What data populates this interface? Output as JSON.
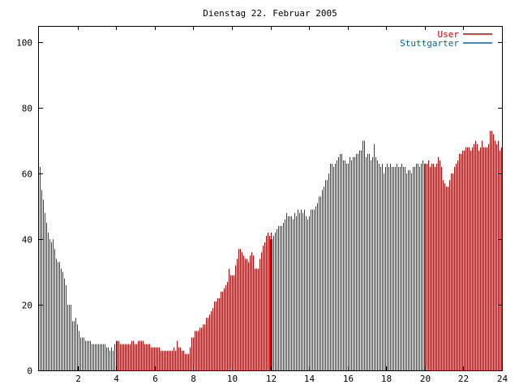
{
  "chart_data": {
    "type": "bar",
    "title": "Dienstag 22. Februar 2005",
    "xlabel": "",
    "ylabel": "",
    "xlim": [
      0,
      24
    ],
    "ylim": [
      0,
      105
    ],
    "xticks": [
      2,
      4,
      6,
      8,
      10,
      12,
      14,
      16,
      18,
      20,
      22,
      24
    ],
    "yticks": [
      0,
      20,
      40,
      60,
      80,
      100
    ],
    "legend_position": "top-right",
    "grid": false,
    "series": [
      {
        "name": "User",
        "color": "#cc0000",
        "y": [
          62,
          55,
          52,
          48,
          45,
          42,
          40,
          39,
          40,
          37,
          34,
          33,
          33,
          31,
          30,
          28,
          26,
          20,
          20,
          20,
          15,
          15,
          16,
          14,
          12,
          10,
          10,
          10,
          9,
          9,
          9,
          9,
          8,
          8,
          8,
          8,
          8,
          8,
          8,
          8,
          8,
          7,
          7,
          6,
          7,
          6,
          8,
          9,
          9,
          9,
          8,
          8,
          8,
          8,
          8,
          8,
          8,
          9,
          9,
          8,
          8,
          9,
          9,
          9,
          9,
          8,
          8,
          8,
          8,
          7,
          7,
          7,
          7,
          7,
          7,
          6,
          6,
          6,
          6,
          6,
          6,
          6,
          6,
          7,
          6,
          9,
          7,
          7,
          6,
          6,
          5,
          5,
          5,
          7,
          10,
          10,
          12,
          12,
          12,
          13,
          13,
          14,
          14,
          16,
          16,
          17,
          18,
          19,
          21,
          21,
          22,
          22,
          24,
          24,
          25,
          26,
          27,
          31,
          29,
          29,
          29,
          32,
          34,
          37,
          37,
          36,
          35,
          34,
          34,
          33,
          35,
          36,
          35,
          31,
          31,
          31,
          34,
          36,
          38,
          39,
          41,
          42,
          41,
          42,
          40,
          41,
          42,
          43,
          44,
          44,
          44,
          45,
          46,
          48,
          47,
          47,
          47,
          46,
          48,
          47,
          49,
          48,
          49,
          48,
          49,
          47,
          46,
          47,
          49,
          49,
          49,
          50,
          51,
          53,
          53,
          55,
          56,
          58,
          58,
          60,
          63,
          63,
          62,
          63,
          64,
          65,
          66,
          66,
          64,
          64,
          63,
          63,
          65,
          64,
          65,
          65,
          66,
          66,
          67,
          67,
          70,
          70,
          65,
          66,
          66,
          64,
          65,
          69,
          65,
          64,
          63,
          62,
          63,
          60,
          62,
          63,
          62,
          63,
          62,
          62,
          62,
          63,
          62,
          62,
          63,
          62,
          62,
          60,
          61,
          61,
          60,
          62,
          62,
          63,
          63,
          62,
          63,
          64,
          63,
          63,
          63,
          64,
          62,
          63,
          63,
          62,
          63,
          65,
          64,
          62,
          58,
          57,
          56,
          56,
          58,
          60,
          60,
          62,
          63,
          64,
          66,
          66,
          67,
          67,
          68,
          68,
          68,
          67,
          68,
          69,
          70,
          69,
          67,
          68,
          70,
          68,
          68,
          68,
          69,
          73,
          73,
          72,
          70,
          69,
          70,
          67,
          68
        ]
      },
      {
        "name": "Stuttgarter",
        "color": "#0060a8",
        "y": []
      }
    ],
    "highlight_hours": [
      12,
      20
    ]
  }
}
